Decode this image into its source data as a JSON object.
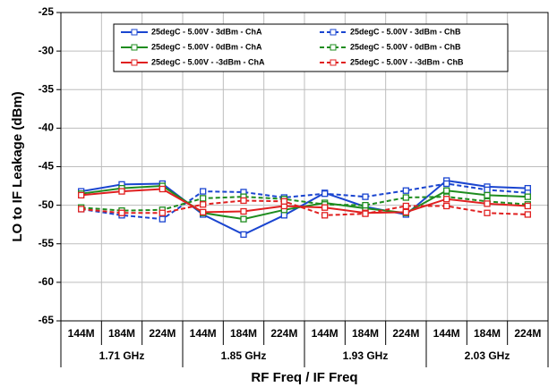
{
  "chart_data": {
    "type": "line",
    "y_label": "LO to IF Leakage (dBm)",
    "x_label": "RF Freq / IF Freq",
    "categories": [
      "144M",
      "184M",
      "224M",
      "144M",
      "184M",
      "224M",
      "144M",
      "184M",
      "224M",
      "144M",
      "184M",
      "224M"
    ],
    "groups": [
      "1.71 GHz",
      "1.85 GHz",
      "1.93 GHz",
      "2.03 GHz"
    ],
    "ylim": [
      -65,
      -25
    ],
    "yticks": [
      -65,
      -60,
      -55,
      -50,
      -45,
      -40,
      -35,
      -30,
      -25
    ],
    "grid": true,
    "legend": "top",
    "series": [
      {
        "name": "25degC - 5.00V - 3dBm - ChA",
        "color": "#1a45d0",
        "linestyle": "solid",
        "values": [
          -48.2,
          -47.3,
          -47.2,
          -51.2,
          -53.8,
          -51.3,
          -48.4,
          -50.2,
          -51.2,
          -46.8,
          -47.6,
          -47.8
        ]
      },
      {
        "name": "25degC - 5.00V - 3dBm - ChB",
        "color": "#1a45d0",
        "linestyle": "dashed",
        "values": [
          -50.5,
          -51.3,
          -51.8,
          -48.2,
          -48.3,
          -49.0,
          -48.5,
          -48.9,
          -48.1,
          -47.2,
          -48.0,
          -48.4
        ]
      },
      {
        "name": "25degC - 5.00V - 0dBm - ChA",
        "color": "#1e8c1e",
        "linestyle": "solid",
        "values": [
          -48.5,
          -47.8,
          -47.5,
          -51.0,
          -51.8,
          -50.6,
          -49.7,
          -50.4,
          -51.0,
          -48.1,
          -48.7,
          -48.9
        ]
      },
      {
        "name": "25degC - 5.00V - 0dBm - ChB",
        "color": "#1e8c1e",
        "linestyle": "dashed",
        "values": [
          -50.3,
          -50.7,
          -50.6,
          -49.1,
          -48.9,
          -49.2,
          -49.9,
          -50.0,
          -49.0,
          -48.9,
          -49.5,
          -49.9
        ]
      },
      {
        "name": "25degC - 5.00V - -3dBm - ChA",
        "color": "#e02020",
        "linestyle": "solid",
        "values": [
          -48.7,
          -48.2,
          -47.9,
          -50.9,
          -50.8,
          -50.1,
          -50.3,
          -51.0,
          -50.9,
          -49.2,
          -49.8,
          -50.1
        ]
      },
      {
        "name": "25degC - 5.00V - -3dBm - ChB",
        "color": "#e02020",
        "linestyle": "dashed",
        "values": [
          -50.5,
          -51.0,
          -51.0,
          -49.9,
          -49.4,
          -49.5,
          -51.3,
          -51.1,
          -50.1,
          -50.1,
          -51.0,
          -51.2
        ]
      }
    ]
  }
}
